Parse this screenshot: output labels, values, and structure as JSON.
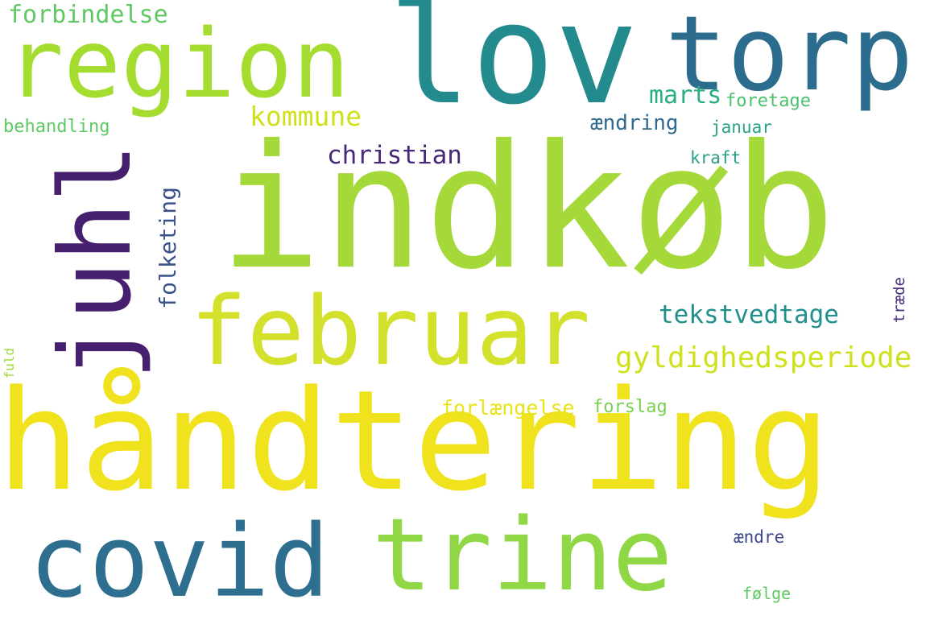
{
  "words": {
    "handtering": {
      "text": "håndtering",
      "color": "#f0e21d"
    },
    "indkob": {
      "text": "indkøb",
      "color": "#a5d93a"
    },
    "lov": {
      "text": "lov",
      "color": "#238a8d"
    },
    "region": {
      "text": "region",
      "color": "#a4dd2f"
    },
    "torp": {
      "text": "torp",
      "color": "#2c6d8e"
    },
    "juhl": {
      "text": "juhl",
      "color": "#46206e"
    },
    "februar": {
      "text": "februar",
      "color": "#d3e12c"
    },
    "covid": {
      "text": "covid",
      "color": "#2e6e8e"
    },
    "trine": {
      "text": "trine",
      "color": "#8fd744"
    },
    "gyldighedsperiode": {
      "text": "gyldighedsperiode",
      "color": "#cfe11c"
    },
    "tekstvedtage": {
      "text": "tekstvedtage",
      "color": "#21908d"
    },
    "christian": {
      "text": "christian",
      "color": "#482878"
    },
    "kommune": {
      "text": "kommune",
      "color": "#d0e11c"
    },
    "marts": {
      "text": "marts",
      "color": "#29af7f"
    },
    "forbindelse": {
      "text": "forbindelse",
      "color": "#5ec962"
    },
    "folketing": {
      "text": "folketing",
      "color": "#3b528b"
    },
    "behandling": {
      "text": "behandling",
      "color": "#5ec962"
    },
    "aendring": {
      "text": "ændring",
      "color": "#31688e"
    },
    "foretage": {
      "text": "foretage",
      "color": "#4ac16d"
    },
    "januar": {
      "text": "januar",
      "color": "#26a285"
    },
    "kraft": {
      "text": "kraft",
      "color": "#2a9e8a"
    },
    "forlaengelse": {
      "text": "forlængelse",
      "color": "#e8e419"
    },
    "forslag": {
      "text": "forslag",
      "color": "#7ad151"
    },
    "traede": {
      "text": "træde",
      "color": "#472d7b"
    },
    "fuld": {
      "text": "fuld",
      "color": "#a0da39"
    },
    "aendre": {
      "text": "ændre",
      "color": "#3e4a89"
    },
    "folge": {
      "text": "følge",
      "color": "#5ec962"
    }
  }
}
